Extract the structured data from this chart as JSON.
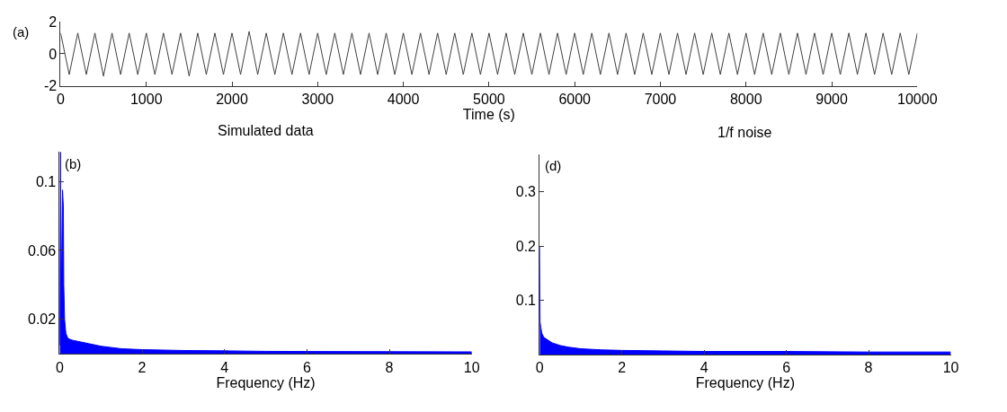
{
  "chart_data": [
    {
      "type": "line",
      "xlabel": "Time (s)",
      "annotations": [
        "(a)"
      ],
      "xlim": [
        0,
        10000
      ],
      "xticks": [
        0,
        1000,
        2000,
        3000,
        4000,
        5000,
        6000,
        7000,
        8000,
        9000,
        10000
      ],
      "ylim": [
        -2,
        2
      ],
      "yticks": [
        -2,
        0,
        2
      ],
      "marker": "none",
      "line_style": "solid",
      "x": [
        0,
        100,
        200,
        300,
        400,
        500,
        600,
        700,
        800,
        900,
        1000,
        1100,
        1200,
        1300,
        1400,
        1500,
        1600,
        1700,
        1800,
        1900,
        2000,
        2100,
        2200,
        2300,
        2400,
        2500,
        2600,
        2700,
        2800,
        2900,
        3000,
        3100,
        3200,
        3300,
        3400,
        3500,
        3600,
        3700,
        3800,
        3900,
        4000,
        4100,
        4200,
        4300,
        4400,
        4500,
        4600,
        4700,
        4800,
        4900,
        5000,
        5100,
        5200,
        5300,
        5400,
        5500,
        5600,
        5700,
        5800,
        5900,
        6000,
        6100,
        6200,
        6300,
        6400,
        6500,
        6600,
        6700,
        6800,
        6900,
        7000,
        7100,
        7200,
        7300,
        7400,
        7500,
        7600,
        7700,
        7800,
        7900,
        8000,
        8100,
        8200,
        8300,
        8400,
        8500,
        8600,
        8700,
        8800,
        8900,
        9000,
        9100,
        9200,
        9300,
        9400,
        9500,
        9600,
        9700,
        9800,
        9900,
        10000
      ],
      "series": [
        {
          "color": "#404040",
          "values": [
            1.3,
            -1.3,
            1.3,
            -1.3,
            1.3,
            -1.4,
            1.3,
            -1.3,
            1.3,
            -1.3,
            1.3,
            -1.3,
            1.3,
            -1.3,
            1.3,
            -1.4,
            1.3,
            -1.3,
            1.3,
            -1.3,
            1.3,
            -1.3,
            1.4,
            -1.3,
            1.3,
            -1.3,
            1.3,
            -1.3,
            1.3,
            -1.3,
            1.3,
            -1.3,
            1.3,
            -1.3,
            1.3,
            -1.3,
            1.3,
            -1.3,
            1.3,
            -1.3,
            1.3,
            -1.3,
            1.3,
            -1.3,
            1.3,
            -1.3,
            1.3,
            -1.3,
            1.3,
            -1.3,
            1.3,
            -1.3,
            1.3,
            -1.3,
            1.3,
            -1.3,
            1.3,
            -1.3,
            1.3,
            -1.3,
            1.3,
            -1.3,
            1.3,
            -1.3,
            1.3,
            -1.3,
            1.3,
            -1.3,
            1.3,
            -1.3,
            1.3,
            -1.3,
            1.3,
            -1.3,
            1.3,
            -1.3,
            1.3,
            -1.3,
            1.3,
            -1.3,
            1.3,
            -1.3,
            1.3,
            -1.3,
            1.3,
            -1.3,
            1.3,
            -1.3,
            1.3,
            -1.3,
            1.3,
            -1.3,
            1.3,
            -1.3,
            1.3,
            -1.3,
            1.3,
            -1.3,
            1.3,
            -1.3,
            1.3
          ]
        }
      ]
    },
    {
      "type": "area",
      "title": "Simulated data",
      "xlabel": "Frequency (Hz)",
      "annotations": [
        "(b)"
      ],
      "xlim": [
        0,
        10
      ],
      "xticks": [
        0,
        2,
        4,
        6,
        8,
        10
      ],
      "ylim": [
        0,
        0.117
      ],
      "yticks": [
        0.02,
        0.06,
        0.1
      ],
      "x": [
        0,
        0.02,
        0.04,
        0.07,
        0.09,
        0.1,
        0.12,
        0.15,
        0.2,
        0.3,
        0.5,
        0.7,
        1,
        1.5,
        2,
        3,
        4,
        5,
        6,
        8,
        10
      ],
      "series": [
        {
          "color": "#0000ff",
          "values": [
            0.005,
            0.117,
            0.03,
            0.095,
            0.085,
            0.04,
            0.02,
            0.012,
            0.009,
            0.008,
            0.007,
            0.006,
            0.0045,
            0.003,
            0.0025,
            0.002,
            0.0018,
            0.0015,
            0.0014,
            0.0013,
            0.0012
          ]
        }
      ]
    },
    {
      "type": "area",
      "title": "1/f noise",
      "xlabel": "Frequency (Hz)",
      "annotations": [
        "(d)"
      ],
      "xlim": [
        0,
        10
      ],
      "xticks": [
        0,
        2,
        4,
        6,
        8,
        10
      ],
      "ylim": [
        0,
        0.37
      ],
      "yticks": [
        0.1,
        0.2,
        0.3
      ],
      "x": [
        0,
        0.01,
        0.05,
        0.1,
        0.2,
        0.3,
        0.5,
        0.7,
        1,
        1.5,
        2,
        3,
        4,
        6,
        8,
        10
      ],
      "series": [
        {
          "color": "#0000ff",
          "values": [
            0.2,
            0.06,
            0.04,
            0.032,
            0.027,
            0.022,
            0.017,
            0.014,
            0.011,
            0.009,
            0.008,
            0.007,
            0.006,
            0.006,
            0.005,
            0.005
          ]
        }
      ]
    }
  ]
}
